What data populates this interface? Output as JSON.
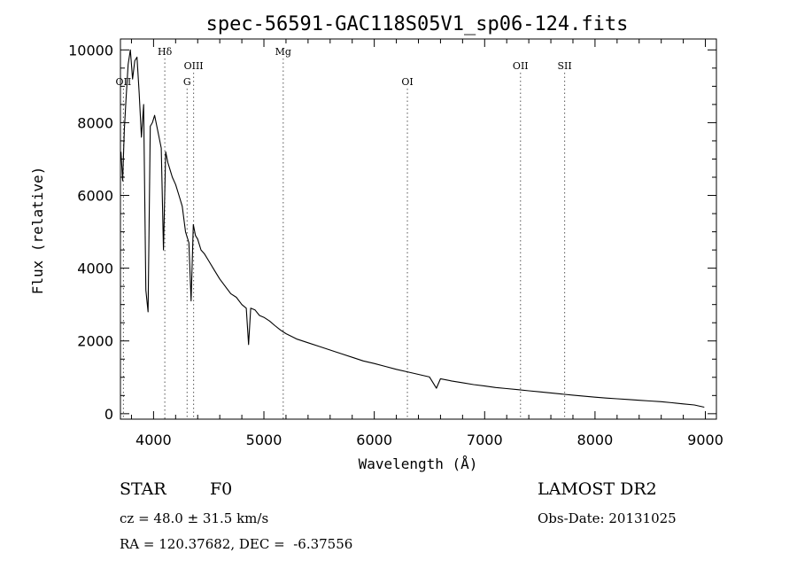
{
  "chart_data": {
    "type": "line",
    "title": "spec-56591-GAC118S05V1_sp06-124.fits",
    "xlabel": "Wavelength (Å)",
    "ylabel": "Flux (relative)",
    "xlim": [
      3700,
      9100
    ],
    "ylim": [
      -150,
      10300
    ],
    "x_ticks": [
      4000,
      5000,
      6000,
      7000,
      8000,
      9000
    ],
    "y_ticks": [
      0,
      2000,
      4000,
      6000,
      8000,
      10000
    ],
    "grid": false,
    "lines": [
      {
        "label": "OII",
        "wavelength": 3727,
        "label_row": 2
      },
      {
        "label": "Hδ",
        "wavelength": 4102,
        "label_row": 0
      },
      {
        "label": "G",
        "wavelength": 4304,
        "label_row": 2
      },
      {
        "label": "OIII",
        "wavelength": 4363,
        "label_row": 1
      },
      {
        "label": "Mg",
        "wavelength": 5175,
        "label_row": 0
      },
      {
        "label": "OI",
        "wavelength": 6300,
        "label_row": 2
      },
      {
        "label": "OII",
        "wavelength": 7325,
        "label_row": 1
      },
      {
        "label": "SII",
        "wavelength": 7725,
        "label_row": 1
      }
    ],
    "series": [
      {
        "x": [
          3705,
          3720,
          3735,
          3750,
          3770,
          3790,
          3810,
          3830,
          3850,
          3870,
          3890,
          3910,
          3930,
          3950,
          3970,
          3990,
          4010,
          4030,
          4050,
          4070,
          4090,
          4110,
          4130,
          4150,
          4170,
          4200,
          4230,
          4260,
          4290,
          4320,
          4340,
          4360,
          4380,
          4400,
          4430,
          4460,
          4500,
          4550,
          4600,
          4650,
          4700,
          4750,
          4800,
          4840,
          4861,
          4880,
          4920,
          4960,
          5000,
          5050,
          5100,
          5150,
          5200,
          5300,
          5400,
          5500,
          5600,
          5700,
          5800,
          5900,
          6000,
          6100,
          6200,
          6300,
          6400,
          6500,
          6563,
          6600,
          6700,
          6800,
          6900,
          7000,
          7100,
          7200,
          7300,
          7400,
          7500,
          7600,
          7700,
          7800,
          7900,
          8000,
          8100,
          8200,
          8300,
          8400,
          8500,
          8600,
          8700,
          8800,
          8900,
          8990
        ],
        "y": [
          7200,
          6400,
          7800,
          8600,
          9600,
          10000,
          9200,
          9700,
          9800,
          8800,
          7600,
          8500,
          3400,
          2800,
          7900,
          8000,
          8200,
          7900,
          7600,
          7300,
          4500,
          7200,
          6900,
          6700,
          6500,
          6300,
          6000,
          5700,
          5000,
          4700,
          3100,
          5200,
          4900,
          4800,
          4500,
          4400,
          4200,
          3950,
          3700,
          3500,
          3300,
          3200,
          3000,
          2900,
          1900,
          2900,
          2850,
          2700,
          2650,
          2550,
          2420,
          2300,
          2200,
          2050,
          1950,
          1850,
          1750,
          1650,
          1550,
          1450,
          1380,
          1300,
          1220,
          1150,
          1080,
          1010,
          700,
          960,
          900,
          850,
          800,
          760,
          720,
          690,
          660,
          630,
          600,
          570,
          540,
          510,
          480,
          455,
          430,
          410,
          390,
          370,
          350,
          330,
          300,
          270,
          240,
          180
        ]
      }
    ]
  },
  "info": {
    "class": "STAR",
    "subclass": "F0",
    "survey": "LAMOST DR2",
    "cz": "cz = 48.0 ± 31.5 km/s",
    "obs_date": "Obs-Date: 20131025",
    "radec": "RA = 120.37682, DEC =  -6.37556"
  }
}
